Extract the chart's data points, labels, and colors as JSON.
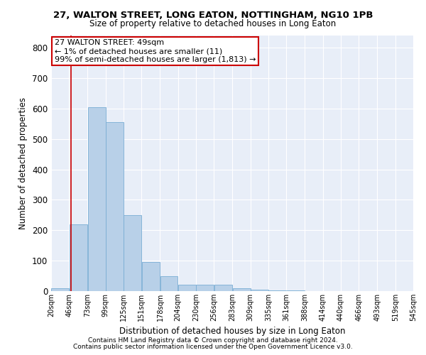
{
  "title1": "27, WALTON STREET, LONG EATON, NOTTINGHAM, NG10 1PB",
  "title2": "Size of property relative to detached houses in Long Eaton",
  "xlabel": "Distribution of detached houses by size in Long Eaton",
  "ylabel": "Number of detached properties",
  "bar_color": "#b8d0e8",
  "bar_edge_color": "#7aadd4",
  "annotation_box_color": "#cc0000",
  "subject_line_color": "#cc0000",
  "subject_value": 49,
  "annotation_line1": "27 WALTON STREET: 49sqm",
  "annotation_line2": "← 1% of detached houses are smaller (11)",
  "annotation_line3": "99% of semi-detached houses are larger (1,813) →",
  "footer1": "Contains HM Land Registry data © Crown copyright and database right 2024.",
  "footer2": "Contains public sector information licensed under the Open Government Licence v3.0.",
  "bin_edges": [
    20,
    46,
    73,
    99,
    125,
    151,
    178,
    204,
    230,
    256,
    283,
    309,
    335,
    361,
    388,
    414,
    440,
    466,
    493,
    519,
    545
  ],
  "bar_heights": [
    10,
    220,
    605,
    555,
    250,
    95,
    50,
    20,
    20,
    20,
    10,
    5,
    3,
    2,
    1,
    0,
    0,
    0,
    0,
    0
  ],
  "ylim": [
    0,
    840
  ],
  "yticks": [
    0,
    100,
    200,
    300,
    400,
    500,
    600,
    700,
    800
  ],
  "background_color": "#e8eef8"
}
